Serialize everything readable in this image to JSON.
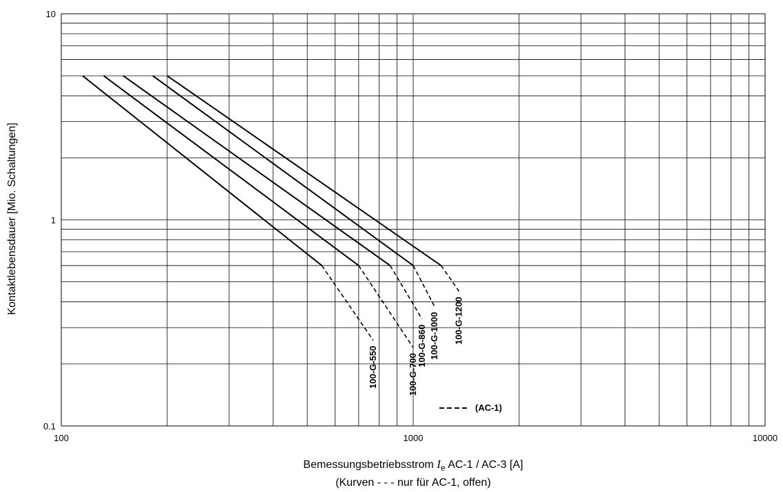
{
  "chart_data": {
    "type": "line",
    "x_scale": "log",
    "y_scale": "log",
    "xlim": [
      100,
      10000
    ],
    "ylim": [
      0.1,
      10
    ],
    "x_ticks": [
      "100",
      "1000",
      "10000"
    ],
    "y_ticks": [
      "0.1",
      "1",
      "10"
    ],
    "grid": true,
    "ylabel": "Kontaktlebensdauer [Mio. Schaltungen]",
    "xlabel": {
      "prefix": "Bemessungsbetriebsstrom ",
      "symbol": "I",
      "subscript": "e",
      "suffix": " AC-1 / AC-3 [A]"
    },
    "xlabel_note": "(Kurven - - - nur für AC-1, offen)",
    "legend": {
      "label": "(AC-1)",
      "style": "dashed",
      "placement": "bottom-center"
    },
    "series": [
      {
        "name": "100-G-550",
        "solid": [
          [
            115,
            5
          ],
          [
            550,
            0.6
          ]
        ],
        "dashed": [
          [
            550,
            0.6
          ],
          [
            770,
            0.26
          ]
        ]
      },
      {
        "name": "100-G-700",
        "solid": [
          [
            132,
            5
          ],
          [
            700,
            0.6
          ]
        ],
        "dashed": [
          [
            700,
            0.6
          ],
          [
            1000,
            0.24
          ]
        ]
      },
      {
        "name": "100-G-860",
        "solid": [
          [
            150,
            5
          ],
          [
            860,
            0.6
          ]
        ],
        "dashed": [
          [
            860,
            0.6
          ],
          [
            1060,
            0.33
          ]
        ]
      },
      {
        "name": "100-G-1000",
        "solid": [
          [
            182,
            5
          ],
          [
            1000,
            0.6
          ]
        ],
        "dashed": [
          [
            1000,
            0.6
          ],
          [
            1150,
            0.38
          ]
        ]
      },
      {
        "name": "100-G-1200",
        "solid": [
          [
            200,
            5
          ],
          [
            1200,
            0.6
          ]
        ],
        "dashed": [
          [
            1200,
            0.6
          ],
          [
            1350,
            0.45
          ]
        ]
      }
    ]
  }
}
